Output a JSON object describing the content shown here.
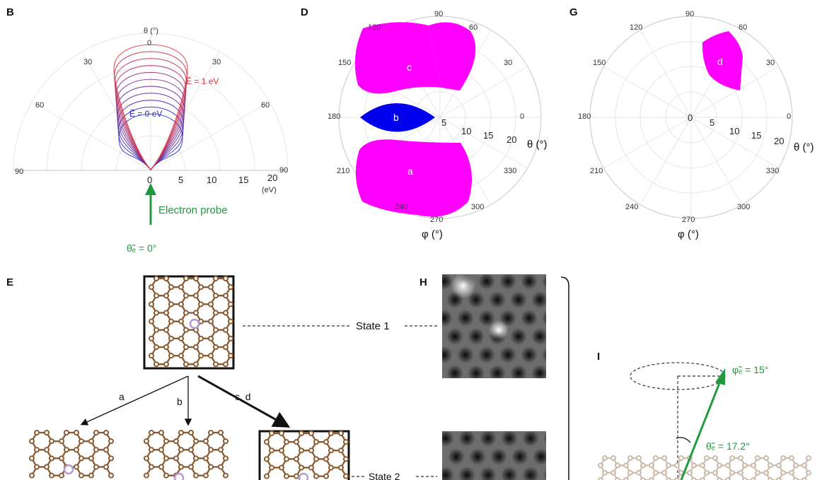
{
  "panels": {
    "B": {
      "label": "B",
      "theta_title": "θ (°)",
      "angle_ticks": [
        "0",
        "30",
        "30",
        "60",
        "60",
        "90",
        "90"
      ],
      "radial_ticks": [
        "0",
        "5",
        "10",
        "15",
        "20"
      ],
      "radial_unit": "(eV)",
      "energy_high": "Ẽ = 1 eV",
      "energy_low": "Ẽ = 0 eV",
      "probe_label": "Electron probe",
      "probe_angle": "θ̃ₑ = 0°",
      "colors": {
        "high": "#e0303a",
        "low": "#2a2ad0",
        "probe": "#1f9a3e"
      }
    },
    "D": {
      "label": "D",
      "angle_ticks": [
        "90",
        "60",
        "30",
        "0",
        "330",
        "300",
        "270",
        "240",
        "210",
        "180",
        "150",
        "120"
      ],
      "radial_ticks": [
        "0",
        "5",
        "10",
        "15",
        "20"
      ],
      "theta_label": "θ (°)",
      "phi_label": "φ (°)",
      "regions": [
        "a",
        "b",
        "c"
      ],
      "colors": {
        "a": "#ff00ff",
        "b": "#0000ee",
        "c": "#ff00ff"
      }
    },
    "G": {
      "label": "G",
      "angle_ticks": [
        "90",
        "60",
        "30",
        "0",
        "330",
        "300",
        "270",
        "240",
        "210",
        "180",
        "150",
        "120"
      ],
      "radial_ticks": [
        "0",
        "5",
        "10",
        "15",
        "20"
      ],
      "theta_label": "θ (°)",
      "phi_label": "φ (°)",
      "regions": [
        "d"
      ],
      "colors": {
        "d": "#ff00ff"
      }
    },
    "E": {
      "label": "E",
      "path_labels": [
        "a",
        "b",
        "c, d"
      ],
      "state1": "State 1",
      "state2": "State 2",
      "colors": {
        "carbon": "#8a5a30",
        "dopant": "#b69ad0"
      }
    },
    "H": {
      "label": "H"
    },
    "I": {
      "label": "I",
      "phi_label": "φ̃ₑ = 15°",
      "theta_label": "θ̃ₑ = 17.2°",
      "colors": {
        "arrow": "#1f9a3e"
      }
    }
  }
}
